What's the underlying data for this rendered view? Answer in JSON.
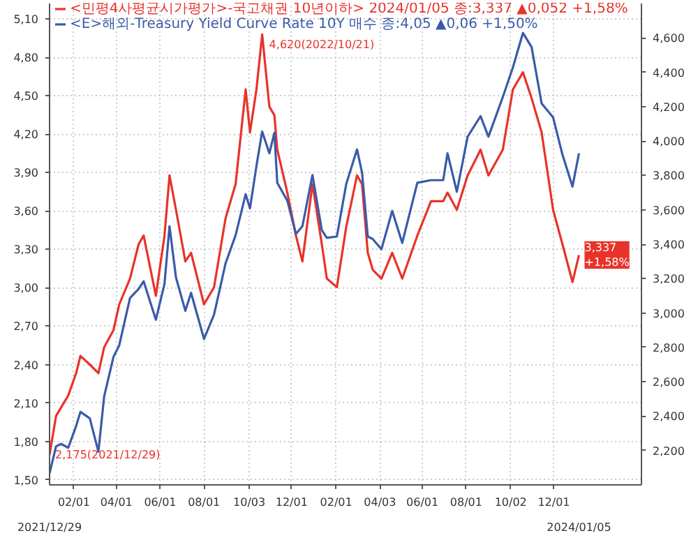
{
  "chart_data": {
    "type": "line",
    "x": [
      "2021-12-29",
      "2022-01-07",
      "2022-01-14",
      "2022-01-24",
      "2022-02-04",
      "2022-02-10",
      "2022-02-23",
      "2022-03-07",
      "2022-03-15",
      "2022-03-28",
      "2022-04-05",
      "2022-04-20",
      "2022-05-02",
      "2022-05-09",
      "2022-05-26",
      "2022-06-07",
      "2022-06-14",
      "2022-06-23",
      "2022-07-06",
      "2022-07-14",
      "2022-08-01",
      "2022-08-15",
      "2022-08-31",
      "2022-09-14",
      "2022-09-28",
      "2022-10-04",
      "2022-10-13",
      "2022-10-21",
      "2022-10-31",
      "2022-11-07",
      "2022-11-11",
      "2022-11-25",
      "2022-12-07",
      "2022-12-16",
      "2022-12-30",
      "2023-01-12",
      "2023-01-19",
      "2023-02-02",
      "2023-02-15",
      "2023-03-02",
      "2023-03-09",
      "2023-03-17",
      "2023-03-24",
      "2023-04-05",
      "2023-04-20",
      "2023-05-04",
      "2023-05-25",
      "2023-06-13",
      "2023-06-30",
      "2023-07-06",
      "2023-07-19",
      "2023-08-03",
      "2023-08-21",
      "2023-09-01",
      "2023-09-21",
      "2023-10-05",
      "2023-10-19",
      "2023-10-31",
      "2023-11-14",
      "2023-11-30",
      "2023-12-13",
      "2023-12-27",
      "2024-01-05"
    ],
    "series": [
      {
        "name": "<민평4사평균시가평가>-국고채권 10년이하> 2024/01/05 종:3,337 ▲0,052 +1,58%",
        "color": "#e8332a",
        "axis": "y2",
        "values": [
          2175,
          2400,
          2450,
          2520,
          2650,
          2750,
          2700,
          2650,
          2800,
          2900,
          3050,
          3200,
          3400,
          3450,
          3100,
          3450,
          3800,
          3600,
          3300,
          3350,
          3050,
          3150,
          3550,
          3750,
          4300,
          4050,
          4300,
          4620,
          4200,
          4150,
          3950,
          3700,
          3450,
          3300,
          3750,
          3400,
          3200,
          3150,
          3500,
          3800,
          3750,
          3350,
          3250,
          3200,
          3350,
          3200,
          3450,
          3650,
          3650,
          3700,
          3600,
          3800,
          3950,
          3800,
          3950,
          4300,
          4400,
          4250,
          4050,
          3600,
          3400,
          3180,
          3337
        ]
      },
      {
        "name": "<E>해외-Treasury Yield Curve Rate 10Y 매수 종:4,05 ▲0,06 +1,50%",
        "color": "#3a5ba8",
        "values": [
          1.55,
          1.76,
          1.78,
          1.75,
          1.92,
          2.03,
          1.98,
          1.72,
          2.15,
          2.46,
          2.55,
          2.92,
          2.99,
          3.05,
          2.75,
          3.03,
          3.48,
          3.08,
          2.82,
          2.96,
          2.6,
          2.79,
          3.19,
          3.41,
          3.73,
          3.62,
          3.95,
          4.22,
          4.05,
          4.21,
          3.82,
          3.68,
          3.42,
          3.48,
          3.88,
          3.45,
          3.39,
          3.4,
          3.81,
          4.08,
          3.9,
          3.4,
          3.38,
          3.3,
          3.6,
          3.35,
          3.82,
          3.84,
          3.84,
          4.05,
          3.75,
          4.18,
          4.34,
          4.18,
          4.49,
          4.72,
          4.99,
          4.88,
          4.44,
          4.33,
          4.04,
          3.79,
          4.05
        ]
      }
    ],
    "xlim": [
      "2021-12-29",
      "2024-04-01"
    ],
    "xticks": [
      {
        "value": "2022-02-01",
        "label": "02/01"
      },
      {
        "value": "2022-04-01",
        "label": "04/01"
      },
      {
        "value": "2022-06-01",
        "label": "06/01"
      },
      {
        "value": "2022-08-01",
        "label": "08/01"
      },
      {
        "value": "2022-10-03",
        "label": "10/03"
      },
      {
        "value": "2022-12-01",
        "label": "12/01"
      },
      {
        "value": "2023-02-01",
        "label": "02/01"
      },
      {
        "value": "2023-04-03",
        "label": "04/03"
      },
      {
        "value": "2023-06-01",
        "label": "06/01"
      },
      {
        "value": "2023-08-01",
        "label": "08/01"
      },
      {
        "value": "2023-10-02",
        "label": "10/02"
      },
      {
        "value": "2023-12-01",
        "label": "12/01"
      }
    ],
    "ylim": [
      1.46,
      5.22
    ],
    "yticks": [
      {
        "value": 1.5,
        "label": "1,50"
      },
      {
        "value": 1.8,
        "label": "1,80"
      },
      {
        "value": 2.1,
        "label": "2,10"
      },
      {
        "value": 2.4,
        "label": "2,40"
      },
      {
        "value": 2.7,
        "label": "2,70"
      },
      {
        "value": 3.0,
        "label": "3,00"
      },
      {
        "value": 3.3,
        "label": "3,30"
      },
      {
        "value": 3.6,
        "label": "3,60"
      },
      {
        "value": 3.9,
        "label": "3,90"
      },
      {
        "value": 4.2,
        "label": "4,20"
      },
      {
        "value": 4.5,
        "label": "4,50"
      },
      {
        "value": 4.8,
        "label": "4,80"
      },
      {
        "value": 5.1,
        "label": "5,10"
      }
    ],
    "y2lim": [
      2000,
      4800
    ],
    "y2ticks": [
      {
        "value": 2200,
        "label": "2,200"
      },
      {
        "value": 2400,
        "label": "2,400"
      },
      {
        "value": 2600,
        "label": "2,600"
      },
      {
        "value": 2800,
        "label": "2,800"
      },
      {
        "value": 3000,
        "label": "3,000"
      },
      {
        "value": 3200,
        "label": "3,200"
      },
      {
        "value": 3400,
        "label": "3,400"
      },
      {
        "value": 3600,
        "label": "3,600"
      },
      {
        "value": 3800,
        "label": "3,800"
      },
      {
        "value": 4000,
        "label": "4,000"
      },
      {
        "value": 4200,
        "label": "4,200"
      },
      {
        "value": 4400,
        "label": "4,400"
      },
      {
        "value": 4600,
        "label": "4,600"
      }
    ],
    "annotations": [
      "4,620(2022/10/21)",
      "2,175(2021/12/29)",
      "3,337\n+1,58%",
      "2021/12/29",
      "2024/01/05"
    ],
    "grid": true,
    "legend": "top left",
    "line_style": "solid"
  }
}
